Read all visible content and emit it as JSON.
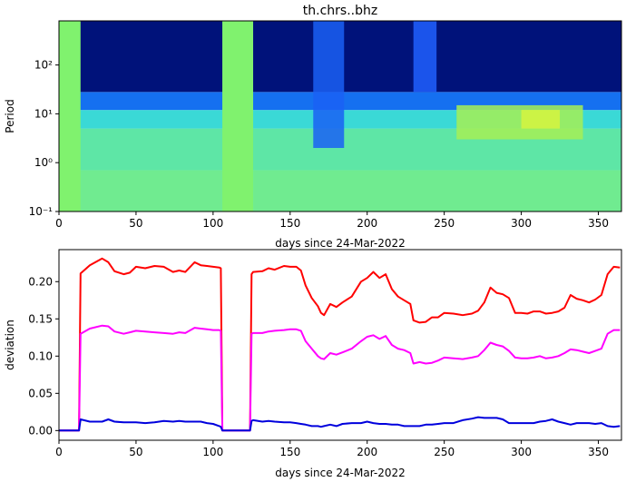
{
  "chart_data": [
    {
      "type": "heatmap",
      "title": "th.chrs..bhz",
      "xlabel": "days since 24-Mar-2022",
      "ylabel": "Period",
      "xlim": [
        0,
        365
      ],
      "ylim": [
        0.1,
        800
      ],
      "yscale": "log",
      "x_ticks": [
        0,
        50,
        100,
        150,
        200,
        250,
        300,
        350
      ],
      "x_tick_labels": [
        "0",
        "50",
        "100",
        "150",
        "200",
        "250",
        "300",
        "350"
      ],
      "y_ticks": [
        0.1,
        1,
        10,
        100
      ],
      "y_tick_labels": [
        "10⁻¹",
        "10⁰",
        "10¹",
        "10²"
      ],
      "gaps": [
        [
          0,
          14
        ],
        [
          106,
          126
        ]
      ],
      "gap_color": "#80f26e",
      "bands": [
        {
          "period_range": [
            0.1,
            0.7
          ],
          "color": "#70eb90"
        },
        {
          "period_range": [
            0.7,
            5
          ],
          "color": "#5ee6a6"
        },
        {
          "period_range": [
            5,
            12
          ],
          "color": "#3ad9d6"
        },
        {
          "period_range": [
            12,
            28
          ],
          "color": "#1570f0"
        },
        {
          "period_range": [
            28,
            800
          ],
          "color": "#00127a"
        }
      ],
      "features": [
        {
          "x": [
            165,
            185
          ],
          "period_range": [
            2,
            800
          ],
          "color": "#1a60f5"
        },
        {
          "x": [
            230,
            245
          ],
          "period_range": [
            28,
            800
          ],
          "color": "#2060ff"
        },
        {
          "x": [
            258,
            340
          ],
          "period_range": [
            3,
            15
          ],
          "color": "#a6ef55"
        },
        {
          "x": [
            300,
            325
          ],
          "period_range": [
            5,
            12
          ],
          "color": "#d6f540"
        }
      ]
    },
    {
      "type": "line",
      "title": "",
      "xlabel": "days since 24-Mar-2022",
      "ylabel": "deviation",
      "xlim": [
        0,
        365
      ],
      "ylim": [
        -0.013,
        0.243
      ],
      "x_ticks": [
        0,
        50,
        100,
        150,
        200,
        250,
        300,
        350
      ],
      "x_tick_labels": [
        "0",
        "50",
        "100",
        "150",
        "200",
        "250",
        "300",
        "350"
      ],
      "y_ticks": [
        0,
        0.05,
        0.1,
        0.15,
        0.2
      ],
      "y_tick_labels": [
        "0.00",
        "0.05",
        "0.10",
        "0.15",
        "0.20"
      ],
      "series": [
        {
          "color": "#ff0000",
          "x": [
            0,
            12,
            13,
            14,
            20,
            28,
            32,
            36,
            42,
            46,
            50,
            56,
            62,
            68,
            74,
            78,
            82,
            88,
            92,
            96,
            100,
            104,
            105,
            106,
            112,
            120,
            124,
            125,
            126,
            132,
            136,
            140,
            146,
            150,
            154,
            157,
            160,
            164,
            168,
            170,
            172,
            176,
            180,
            184,
            190,
            196,
            200,
            204,
            208,
            212,
            216,
            220,
            224,
            228,
            230,
            234,
            238,
            242,
            246,
            250,
            256,
            262,
            268,
            272,
            276,
            280,
            284,
            288,
            292,
            296,
            300,
            304,
            308,
            312,
            316,
            320,
            324,
            328,
            332,
            336,
            340,
            344,
            348,
            352,
            356,
            360,
            364
          ],
          "y": [
            0,
            0,
            0,
            0.211,
            0.222,
            0.231,
            0.226,
            0.214,
            0.21,
            0.212,
            0.22,
            0.218,
            0.221,
            0.22,
            0.213,
            0.215,
            0.213,
            0.226,
            0.222,
            0.221,
            0.22,
            0.219,
            0.218,
            0,
            0,
            0,
            0,
            0.21,
            0.213,
            0.214,
            0.218,
            0.216,
            0.221,
            0.22,
            0.22,
            0.215,
            0.195,
            0.178,
            0.167,
            0.158,
            0.155,
            0.17,
            0.166,
            0.172,
            0.18,
            0.2,
            0.205,
            0.213,
            0.205,
            0.21,
            0.19,
            0.18,
            0.175,
            0.17,
            0.148,
            0.145,
            0.146,
            0.152,
            0.152,
            0.158,
            0.157,
            0.155,
            0.157,
            0.161,
            0.172,
            0.192,
            0.185,
            0.183,
            0.178,
            0.158,
            0.158,
            0.157,
            0.16,
            0.16,
            0.157,
            0.158,
            0.16,
            0.165,
            0.182,
            0.177,
            0.175,
            0.172,
            0.176,
            0.182,
            0.21,
            0.22,
            0.219
          ]
        },
        {
          "color": "#ff00ff",
          "x": [
            0,
            12,
            13,
            14,
            20,
            28,
            32,
            36,
            42,
            46,
            50,
            56,
            62,
            68,
            74,
            78,
            82,
            88,
            92,
            96,
            100,
            104,
            105,
            106,
            112,
            120,
            124,
            125,
            126,
            132,
            136,
            140,
            146,
            150,
            154,
            157,
            160,
            164,
            168,
            170,
            172,
            176,
            180,
            184,
            190,
            196,
            200,
            204,
            208,
            212,
            216,
            220,
            224,
            228,
            230,
            234,
            238,
            242,
            246,
            250,
            256,
            262,
            268,
            272,
            276,
            280,
            284,
            288,
            292,
            296,
            300,
            304,
            308,
            312,
            316,
            320,
            324,
            328,
            332,
            336,
            340,
            344,
            348,
            352,
            356,
            360,
            364
          ],
          "y": [
            0,
            0,
            0,
            0.13,
            0.137,
            0.141,
            0.14,
            0.133,
            0.13,
            0.132,
            0.134,
            0.133,
            0.132,
            0.131,
            0.13,
            0.132,
            0.131,
            0.138,
            0.137,
            0.136,
            0.135,
            0.135,
            0.134,
            0,
            0,
            0,
            0,
            0.13,
            0.131,
            0.131,
            0.133,
            0.134,
            0.135,
            0.136,
            0.136,
            0.134,
            0.12,
            0.11,
            0.1,
            0.097,
            0.096,
            0.104,
            0.102,
            0.105,
            0.11,
            0.12,
            0.126,
            0.128,
            0.123,
            0.127,
            0.115,
            0.11,
            0.108,
            0.104,
            0.09,
            0.092,
            0.09,
            0.091,
            0.094,
            0.098,
            0.097,
            0.096,
            0.098,
            0.1,
            0.108,
            0.118,
            0.115,
            0.113,
            0.107,
            0.098,
            0.097,
            0.097,
            0.098,
            0.1,
            0.097,
            0.098,
            0.1,
            0.104,
            0.109,
            0.108,
            0.106,
            0.104,
            0.107,
            0.11,
            0.13,
            0.135,
            0.135
          ]
        },
        {
          "color": "#0000dd",
          "x": [
            0,
            12,
            13,
            14,
            20,
            28,
            32,
            36,
            42,
            46,
            50,
            56,
            62,
            68,
            74,
            78,
            82,
            88,
            92,
            96,
            100,
            104,
            105,
            106,
            112,
            120,
            124,
            125,
            126,
            132,
            136,
            140,
            146,
            150,
            154,
            157,
            160,
            164,
            168,
            170,
            172,
            176,
            180,
            184,
            190,
            196,
            200,
            204,
            208,
            212,
            216,
            220,
            224,
            228,
            230,
            234,
            238,
            242,
            246,
            250,
            256,
            262,
            268,
            272,
            276,
            280,
            284,
            288,
            292,
            296,
            300,
            304,
            308,
            312,
            316,
            320,
            324,
            328,
            332,
            336,
            340,
            344,
            348,
            352,
            356,
            360,
            364
          ],
          "y": [
            0,
            0,
            0,
            0.015,
            0.012,
            0.012,
            0.015,
            0.012,
            0.011,
            0.011,
            0.011,
            0.01,
            0.011,
            0.013,
            0.012,
            0.013,
            0.012,
            0.012,
            0.012,
            0.01,
            0.009,
            0.006,
            0.005,
            0,
            0,
            0,
            0,
            0.013,
            0.014,
            0.012,
            0.013,
            0.012,
            0.011,
            0.011,
            0.01,
            0.009,
            0.008,
            0.006,
            0.006,
            0.005,
            0.006,
            0.008,
            0.006,
            0.009,
            0.01,
            0.01,
            0.012,
            0.01,
            0.009,
            0.009,
            0.008,
            0.008,
            0.006,
            0.006,
            0.006,
            0.006,
            0.008,
            0.008,
            0.009,
            0.01,
            0.01,
            0.014,
            0.016,
            0.018,
            0.017,
            0.017,
            0.017,
            0.015,
            0.01,
            0.01,
            0.01,
            0.01,
            0.01,
            0.012,
            0.013,
            0.015,
            0.012,
            0.01,
            0.008,
            0.01,
            0.01,
            0.01,
            0.009,
            0.01,
            0.006,
            0.005,
            0.006
          ]
        }
      ]
    }
  ]
}
